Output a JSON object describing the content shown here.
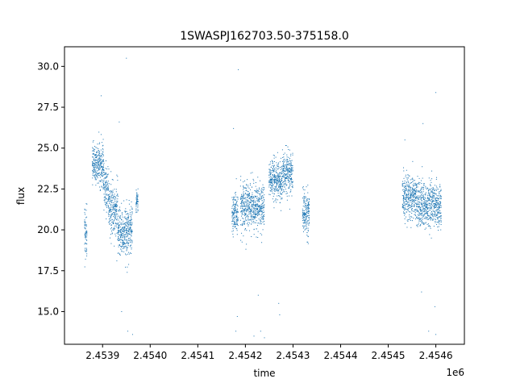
{
  "chart_data": {
    "type": "scatter",
    "title": "1SWASPJ162703.50-375158.0",
    "xlabel": "time",
    "ylabel": "flux",
    "x_offset_label": "1e6",
    "xlim": [
      2453820,
      2454660
    ],
    "ylim": [
      13.0,
      31.2
    ],
    "x_ticks": [
      2453900,
      2454000,
      2454100,
      2454200,
      2454300,
      2454400,
      2454500,
      2454600
    ],
    "x_tick_labels": [
      "2.4539",
      "2.4540",
      "2.4541",
      "2.4542",
      "2.4543",
      "2.4544",
      "2.4545",
      "2.4546"
    ],
    "y_ticks": [
      15.0,
      17.5,
      20.0,
      22.5,
      25.0,
      27.5,
      30.0
    ],
    "y_tick_labels": [
      "15.0",
      "17.5",
      "20.0",
      "22.5",
      "25.0",
      "27.5",
      "30.0"
    ],
    "grid": false,
    "marker_color": "#1f77b4",
    "series": [
      {
        "clusters": [
          {
            "x": [
              2453862,
              2453868
            ],
            "y_center": 20.0,
            "y_spread": 2.0
          },
          {
            "x": [
              2453878,
              2453888
            ],
            "y_center": 24.0,
            "y_spread": 1.0
          },
          {
            "x": [
              2453888,
              2453903
            ],
            "y_center": 24.0,
            "y_spread": 1.2
          },
          {
            "x": [
              2453903,
              2453913
            ],
            "y_center": 22.5,
            "y_spread": 1.3
          },
          {
            "x": [
              2453913,
              2453932
            ],
            "y_center": 21.2,
            "y_spread": 1.4
          },
          {
            "x": [
              2453932,
              2453950
            ],
            "y_center": 19.8,
            "y_spread": 1.3
          },
          {
            "x": [
              2453950,
              2453963
            ],
            "y_center": 20.0,
            "y_spread": 1.4
          },
          {
            "x": [
              2453970,
              2453975
            ],
            "y_center": 21.8,
            "y_spread": 0.6
          },
          {
            "x": [
              2454172,
              2454185
            ],
            "y_center": 21.0,
            "y_spread": 1.1
          },
          {
            "x": [
              2454190,
              2454212
            ],
            "y_center": 21.5,
            "y_spread": 1.3
          },
          {
            "x": [
              2454212,
              2454240
            ],
            "y_center": 21.3,
            "y_spread": 1.2
          },
          {
            "x": [
              2454250,
              2454278
            ],
            "y_center": 23.0,
            "y_spread": 1.0
          },
          {
            "x": [
              2454278,
              2454300
            ],
            "y_center": 23.5,
            "y_spread": 1.2
          },
          {
            "x": [
              2454320,
              2454335
            ],
            "y_center": 21.0,
            "y_spread": 1.2
          },
          {
            "x": [
              2454530,
              2454560
            ],
            "y_center": 22.0,
            "y_spread": 1.2
          },
          {
            "x": [
              2454560,
              2454590
            ],
            "y_center": 21.5,
            "y_spread": 1.3
          },
          {
            "x": [
              2454590,
              2454612
            ],
            "y_center": 21.5,
            "y_spread": 1.2
          }
        ],
        "outliers": [
          {
            "x": 2453897,
            "y": 28.2
          },
          {
            "x": 2453935,
            "y": 26.6
          },
          {
            "x": 2453950,
            "y": 30.5
          },
          {
            "x": 2453953,
            "y": 13.8
          },
          {
            "x": 2453963,
            "y": 13.6
          },
          {
            "x": 2453940,
            "y": 15.0
          },
          {
            "x": 2454175,
            "y": 26.2
          },
          {
            "x": 2454185,
            "y": 29.8
          },
          {
            "x": 2454183,
            "y": 14.7
          },
          {
            "x": 2454180,
            "y": 13.8
          },
          {
            "x": 2454218,
            "y": 13.5
          },
          {
            "x": 2454232,
            "y": 13.8
          },
          {
            "x": 2454240,
            "y": 13.4
          },
          {
            "x": 2454227,
            "y": 16.0
          },
          {
            "x": 2454270,
            "y": 15.5
          },
          {
            "x": 2454272,
            "y": 14.8
          },
          {
            "x": 2454570,
            "y": 16.2
          },
          {
            "x": 2454573,
            "y": 26.5
          },
          {
            "x": 2454585,
            "y": 13.8
          },
          {
            "x": 2454600,
            "y": 28.4
          },
          {
            "x": 2454598,
            "y": 15.3
          },
          {
            "x": 2454600,
            "y": 13.6
          },
          {
            "x": 2454535,
            "y": 25.5
          }
        ]
      }
    ]
  }
}
